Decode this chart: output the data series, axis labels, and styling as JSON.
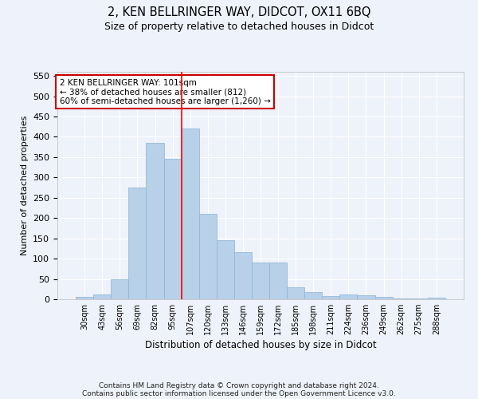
{
  "title": "2, KEN BELLRINGER WAY, DIDCOT, OX11 6BQ",
  "subtitle": "Size of property relative to detached houses in Didcot",
  "xlabel": "Distribution of detached houses by size in Didcot",
  "ylabel": "Number of detached properties",
  "categories": [
    "30sqm",
    "43sqm",
    "56sqm",
    "69sqm",
    "82sqm",
    "95sqm",
    "107sqm",
    "120sqm",
    "133sqm",
    "146sqm",
    "159sqm",
    "172sqm",
    "185sqm",
    "198sqm",
    "211sqm",
    "224sqm",
    "236sqm",
    "249sqm",
    "262sqm",
    "275sqm",
    "288sqm"
  ],
  "values": [
    5,
    12,
    50,
    275,
    385,
    345,
    420,
    210,
    145,
    115,
    90,
    90,
    30,
    17,
    7,
    12,
    10,
    5,
    1,
    1,
    3
  ],
  "bar_color": "#b8d0e8",
  "bar_edge_color": "#8ab4d4",
  "background_color": "#eef2fa",
  "grid_color": "#ffffff",
  "red_line_index": 5.5,
  "annotation_line1": "2 KEN BELLRINGER WAY: 101sqm",
  "annotation_line2": "← 38% of detached houses are smaller (812)",
  "annotation_line3": "60% of semi-detached houses are larger (1,260) →",
  "annotation_box_color": "#ffffff",
  "annotation_box_edge": "#cc0000",
  "ylim": [
    0,
    560
  ],
  "yticks": [
    0,
    50,
    100,
    150,
    200,
    250,
    300,
    350,
    400,
    450,
    500,
    550
  ],
  "footer_line1": "Contains HM Land Registry data © Crown copyright and database right 2024.",
  "footer_line2": "Contains public sector information licensed under the Open Government Licence v3.0."
}
